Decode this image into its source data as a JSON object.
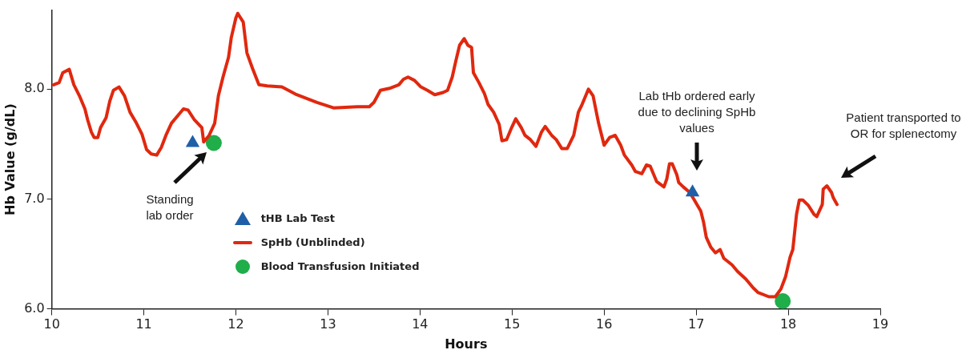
{
  "chart_data": {
    "type": "line",
    "xlabel": "Hours",
    "ylabel": "Hb Value (g/dL)",
    "xlim": [
      10,
      19
    ],
    "xticks": [
      10,
      11,
      12,
      13,
      14,
      15,
      16,
      17,
      18,
      19
    ],
    "ylim": [
      6,
      8.72
    ],
    "yticks": [
      {
        "value": 6,
        "label": "6.0"
      },
      {
        "value": 7,
        "label": "7.0"
      },
      {
        "value": 8,
        "label": "8.0"
      }
    ],
    "legend": "bottom left",
    "series": [
      {
        "name": "tHB Lab Test",
        "type": "scatter",
        "marker": "triangle",
        "color": "#1f5fa8",
        "x": [
          11.53,
          16.96
        ],
        "values": [
          7.51,
          7.06
        ]
      },
      {
        "name": "SpHb (Unblinded)",
        "type": "line",
        "marker": "none",
        "color": "#e0280f",
        "x": [
          10.02,
          10.08,
          10.12,
          10.19,
          10.24,
          10.3,
          10.36,
          10.39,
          10.43,
          10.46,
          10.5,
          10.53,
          10.59,
          10.63,
          10.67,
          10.73,
          10.79,
          10.85,
          10.92,
          10.98,
          11.03,
          11.08,
          11.14,
          11.19,
          11.24,
          11.3,
          11.37,
          11.43,
          11.48,
          11.55,
          11.63,
          11.65,
          11.71,
          11.77,
          11.81,
          11.86,
          11.92,
          11.95,
          12.0,
          12.02,
          12.08,
          12.12,
          12.18,
          12.25,
          12.34,
          12.5,
          12.66,
          12.88,
          13.06,
          13.32,
          13.45,
          13.5,
          13.57,
          13.68,
          13.77,
          13.82,
          13.87,
          13.94,
          14.01,
          14.08,
          14.16,
          14.25,
          14.3,
          14.35,
          14.39,
          14.43,
          14.48,
          14.52,
          14.56,
          14.58,
          14.64,
          14.7,
          14.74,
          14.8,
          14.86,
          14.89,
          14.94,
          14.99,
          15.04,
          15.1,
          15.14,
          15.2,
          15.26,
          15.32,
          15.36,
          15.43,
          15.48,
          15.54,
          15.6,
          15.67,
          15.72,
          15.76,
          15.83,
          15.88,
          15.94,
          16.0,
          16.06,
          16.12,
          16.18,
          16.22,
          16.3,
          16.34,
          16.41,
          16.46,
          16.5,
          16.57,
          16.65,
          16.68,
          16.71,
          16.74,
          16.79,
          16.81,
          16.86,
          16.93,
          16.98,
          17.05,
          17.08,
          17.11,
          17.16,
          17.21,
          17.26,
          17.3,
          17.39,
          17.45,
          17.54,
          17.62,
          17.67,
          17.79,
          17.86,
          17.92,
          17.97,
          18.02,
          18.05,
          18.09,
          18.12,
          18.16,
          18.22,
          18.28,
          18.31,
          18.37,
          18.38,
          18.42,
          18.47,
          18.49,
          18.53
        ],
        "values": [
          8.04,
          8.06,
          8.15,
          8.18,
          8.04,
          7.94,
          7.82,
          7.72,
          7.61,
          7.56,
          7.56,
          7.65,
          7.74,
          7.89,
          7.99,
          8.02,
          7.94,
          7.79,
          7.69,
          7.59,
          7.45,
          7.41,
          7.4,
          7.47,
          7.58,
          7.69,
          7.76,
          7.82,
          7.81,
          7.72,
          7.65,
          7.52,
          7.58,
          7.69,
          7.94,
          8.11,
          8.29,
          8.47,
          8.65,
          8.69,
          8.61,
          8.33,
          8.19,
          8.04,
          8.03,
          8.02,
          7.95,
          7.88,
          7.83,
          7.84,
          7.84,
          7.88,
          7.99,
          8.01,
          8.04,
          8.09,
          8.11,
          8.08,
          8.02,
          7.99,
          7.95,
          7.97,
          7.99,
          8.11,
          8.26,
          8.4,
          8.46,
          8.4,
          8.38,
          8.15,
          8.06,
          7.96,
          7.86,
          7.79,
          7.68,
          7.53,
          7.54,
          7.64,
          7.73,
          7.65,
          7.58,
          7.54,
          7.48,
          7.61,
          7.66,
          7.58,
          7.54,
          7.46,
          7.46,
          7.58,
          7.79,
          7.86,
          8.0,
          7.94,
          7.69,
          7.49,
          7.56,
          7.58,
          7.49,
          7.4,
          7.31,
          7.25,
          7.23,
          7.31,
          7.3,
          7.16,
          7.11,
          7.18,
          7.32,
          7.32,
          7.22,
          7.15,
          7.11,
          7.06,
          6.99,
          6.89,
          6.79,
          6.65,
          6.56,
          6.51,
          6.54,
          6.46,
          6.4,
          6.34,
          6.27,
          6.19,
          6.15,
          6.11,
          6.11,
          6.18,
          6.29,
          6.47,
          6.54,
          6.86,
          6.99,
          6.99,
          6.94,
          6.86,
          6.84,
          6.95,
          7.09,
          7.12,
          7.06,
          7.01,
          6.95
        ]
      },
      {
        "name": "Blood Transfusion Initiated",
        "type": "scatter",
        "marker": "circle",
        "color": "#1fae4a",
        "x": [
          11.76,
          17.94
        ],
        "values": [
          7.51,
          6.07
        ]
      }
    ],
    "annotations": [
      "Standing lab order",
      "Lab tHb ordered early due to declining SpHb values",
      "Patient transported to OR for splenectomy"
    ]
  }
}
